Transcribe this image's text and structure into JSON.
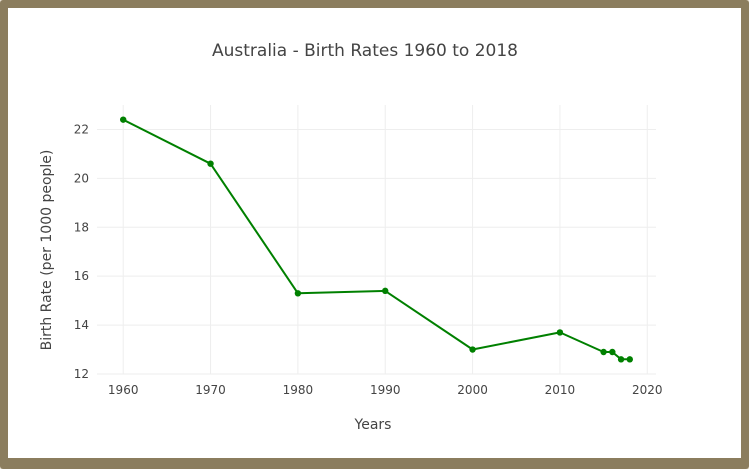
{
  "chart_data": {
    "type": "line",
    "title": "Australia - Birth Rates 1960 to 2018",
    "xlabel": "Years",
    "ylabel": "Birth Rate (per 1000 people)",
    "xlim": [
      1957,
      2021
    ],
    "ylim": [
      12,
      23
    ],
    "xticks": [
      1960,
      1970,
      1980,
      1990,
      2000,
      2010,
      2020
    ],
    "yticks": [
      12,
      14,
      16,
      18,
      20,
      22
    ],
    "grid": true,
    "color": "#008000",
    "series": [
      {
        "x": [
          1960,
          1970,
          1980,
          1990,
          2000,
          2010,
          2015,
          2016,
          2017,
          2018
        ],
        "values": [
          22.4,
          20.6,
          15.3,
          15.4,
          13.0,
          13.7,
          12.9,
          12.9,
          12.6,
          12.6
        ]
      }
    ]
  }
}
